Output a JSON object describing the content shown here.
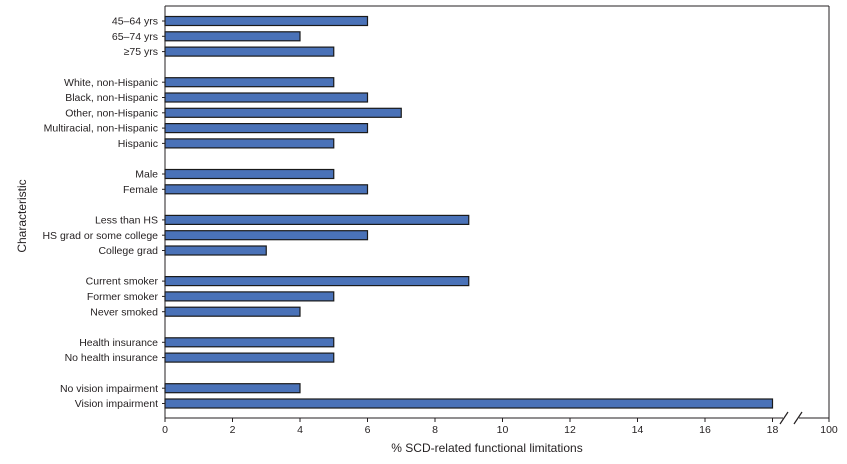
{
  "chart_data": {
    "type": "bar",
    "orientation": "horizontal",
    "xlabel": "% SCD-related functional limitations",
    "ylabel": "Characteristic",
    "xlim": [
      0,
      100
    ],
    "axis_break": [
      18,
      100
    ],
    "xticks": [
      0,
      2,
      4,
      6,
      8,
      10,
      12,
      14,
      16,
      18,
      100
    ],
    "bar_color": "#4a72b8",
    "grid": false,
    "groups": [
      {
        "categories": [
          "45–64 yrs",
          "65–74 yrs",
          "≥75 yrs"
        ],
        "values": [
          6,
          4,
          5
        ]
      },
      {
        "categories": [
          "White, non-Hispanic",
          "Black, non-Hispanic",
          "Other, non-Hispanic",
          "Multiracial, non-Hispanic",
          "Hispanic"
        ],
        "values": [
          5,
          6,
          7,
          6,
          5
        ]
      },
      {
        "categories": [
          "Male",
          "Female"
        ],
        "values": [
          5,
          6
        ]
      },
      {
        "categories": [
          "Less than HS",
          "HS grad or some college",
          "College grad"
        ],
        "values": [
          9,
          6,
          3
        ]
      },
      {
        "categories": [
          "Current smoker",
          "Former smoker",
          "Never smoked"
        ],
        "values": [
          9,
          5,
          4
        ]
      },
      {
        "categories": [
          "Health insurance",
          "No health insurance"
        ],
        "values": [
          5,
          5
        ]
      },
      {
        "categories": [
          "No vision impairment",
          "Vision impairment"
        ],
        "values": [
          4,
          18
        ]
      }
    ]
  }
}
